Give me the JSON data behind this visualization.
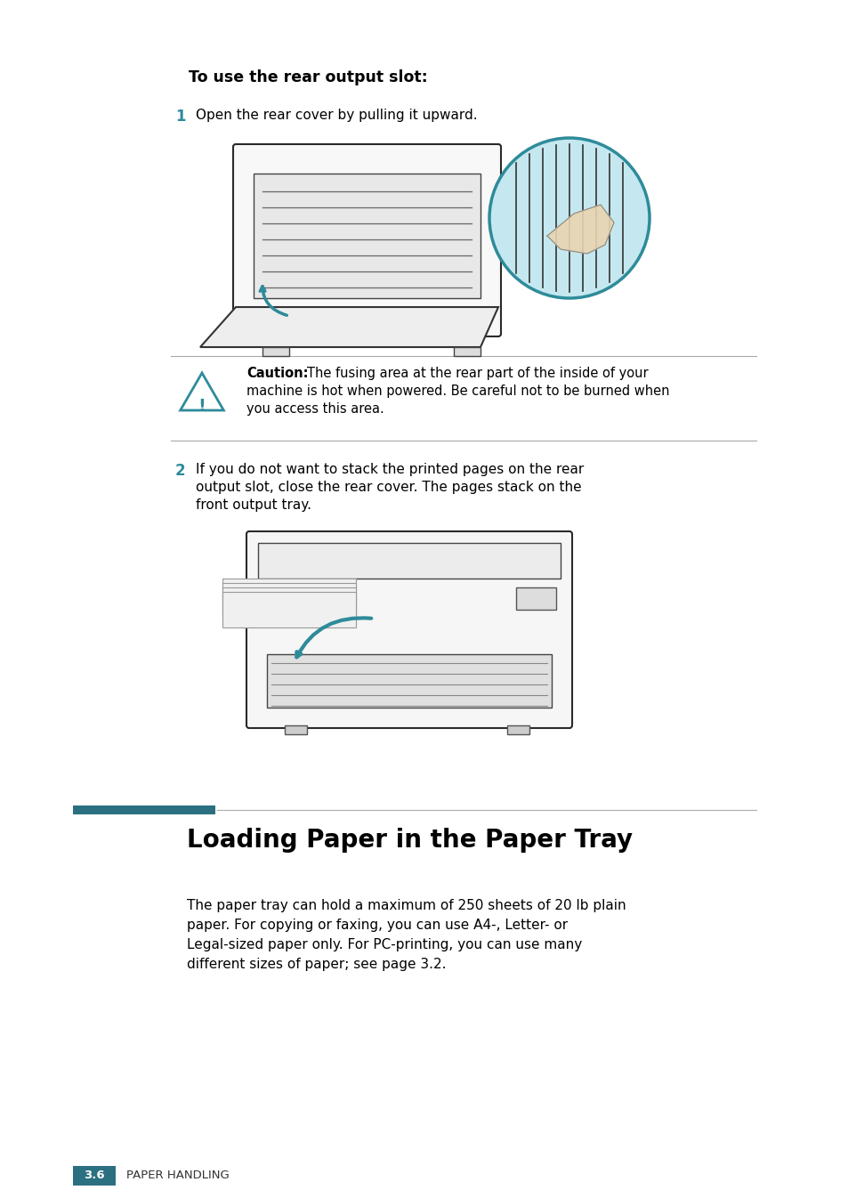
{
  "bg_color": "#ffffff",
  "heading": "To use the rear output slot:",
  "step1_num": "1",
  "step1_text": "Open the rear cover by pulling it upward.",
  "caution_label": "Caution:",
  "caution_text": "The fusing area at the rear part of the inside of your\nmachine is hot when powered. Be careful not to be burned when\nyou access this area.",
  "step2_num": "2",
  "step2_text": "If you do not want to stack the printed pages on the rear\noutput slot, close the rear cover. The pages stack on the\nfront output tray.",
  "section_title": "Loading Paper in the Paper Tray",
  "section_text_line1": "The paper tray can hold a maximum of 250 sheets of 20 lb plain",
  "section_text_line2": "paper. For copying or faxing, you can use A4-, Letter- or",
  "section_text_line3": "Legal-sized paper only. For PC-printing, you can use many",
  "section_text_line4": "different sizes of paper; see page 3.2.",
  "footer_num": "3.6",
  "footer_text": "Paper Handling",
  "teal_color": "#2e8b9a",
  "teal_dark": "#2a7080",
  "teal_light": "#c5e8f0",
  "step_num_color": "#2e8b9a",
  "line_color": "#aaaaaa",
  "text_color": "#000000",
  "gray_text": "#333333"
}
